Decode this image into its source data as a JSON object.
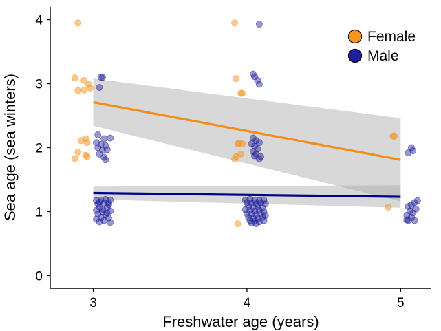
{
  "chart_data": {
    "type": "scatter",
    "title": "",
    "xlabel": "Freshwater age (years)",
    "ylabel": "Sea age (sea winters)",
    "xlim": [
      2.72,
      5.2
    ],
    "ylim": [
      -0.2,
      4.2
    ],
    "x_ticks": [
      3,
      4,
      5
    ],
    "y_ticks": [
      0,
      1,
      2,
      3,
      4
    ],
    "grid": false,
    "legend": {
      "position": "top-right"
    },
    "series": [
      {
        "name": "Female",
        "color": "#f5941f",
        "line_color": "#f28c1a",
        "points": [
          [
            2.9,
            3.95
          ],
          [
            2.88,
            3.09
          ],
          [
            2.94,
            3.05
          ],
          [
            2.9,
            2.89
          ],
          [
            2.97,
            2.99
          ],
          [
            2.98,
            2.93
          ],
          [
            2.94,
            2.9
          ],
          [
            2.92,
            2.11
          ],
          [
            2.95,
            2.14
          ],
          [
            2.96,
            2.08
          ],
          [
            2.9,
            1.93
          ],
          [
            2.88,
            1.83
          ],
          [
            2.96,
            1.86
          ],
          [
            2.95,
            1.88
          ],
          [
            3.92,
            3.95
          ],
          [
            3.93,
            3.08
          ],
          [
            3.96,
            2.85
          ],
          [
            3.97,
            2.85
          ],
          [
            3.95,
            2.07
          ],
          [
            3.97,
            2.06
          ],
          [
            3.94,
            2.06
          ],
          [
            3.96,
            1.9
          ],
          [
            3.93,
            1.86
          ],
          [
            3.92,
            1.82
          ],
          [
            3.94,
            0.81
          ],
          [
            4.95,
            2.18
          ],
          [
            4.96,
            2.18
          ],
          [
            4.92,
            1.07
          ]
        ],
        "fit": {
          "x": [
            3,
            5
          ],
          "y": [
            2.71,
            1.81
          ],
          "ci_lower": [
            2.34,
            1.16
          ],
          "ci_upper": [
            3.08,
            2.46
          ]
        }
      },
      {
        "name": "Male",
        "color": "#1f1f99",
        "line_color": "#00008b",
        "points": [
          [
            3.05,
            3.1
          ],
          [
            3.06,
            3.1
          ],
          [
            3.04,
            2.94
          ],
          [
            3.03,
            2.2
          ],
          [
            3.07,
            2.14
          ],
          [
            3.11,
            2.15
          ],
          [
            3.02,
            2.08
          ],
          [
            3.05,
            2.05
          ],
          [
            3.08,
            2.03
          ],
          [
            3.03,
            2.0
          ],
          [
            3.06,
            1.96
          ],
          [
            3.09,
            1.97
          ],
          [
            3.04,
            1.9
          ],
          [
            3.07,
            1.85
          ],
          [
            3.08,
            1.81
          ],
          [
            3.02,
            1.17
          ],
          [
            3.05,
            1.18
          ],
          [
            3.08,
            1.19
          ],
          [
            3.11,
            1.18
          ],
          [
            3.03,
            1.12
          ],
          [
            3.07,
            1.13
          ],
          [
            3.1,
            1.11
          ],
          [
            3.04,
            1.07
          ],
          [
            3.09,
            1.06
          ],
          [
            3.02,
            1.02
          ],
          [
            3.06,
            1.0
          ],
          [
            3.11,
            1.01
          ],
          [
            3.03,
            0.96
          ],
          [
            3.08,
            0.95
          ],
          [
            3.05,
            0.91
          ],
          [
            3.1,
            0.9
          ],
          [
            3.02,
            0.88
          ],
          [
            3.07,
            0.86
          ],
          [
            3.04,
            0.84
          ],
          [
            3.11,
            0.83
          ],
          [
            3.06,
            1.04
          ],
          [
            3.09,
            0.98
          ],
          [
            3.04,
            1.15
          ],
          [
            3.1,
            1.14
          ],
          [
            4.08,
            3.93
          ],
          [
            4.04,
            3.15
          ],
          [
            4.05,
            3.11
          ],
          [
            4.07,
            3.05
          ],
          [
            4.08,
            2.99
          ],
          [
            4.04,
            2.15
          ],
          [
            4.06,
            2.11
          ],
          [
            4.03,
            2.06
          ],
          [
            4.08,
            2.08
          ],
          [
            4.05,
            2.02
          ],
          [
            4.07,
            1.98
          ],
          [
            4.04,
            1.94
          ],
          [
            4.06,
            1.9
          ],
          [
            4.09,
            1.86
          ],
          [
            4.05,
            1.87
          ],
          [
            4.08,
            1.82
          ],
          [
            3.99,
            1.18
          ],
          [
            4.02,
            1.19
          ],
          [
            4.05,
            1.18
          ],
          [
            4.08,
            1.17
          ],
          [
            4.11,
            1.18
          ],
          [
            4.0,
            1.14
          ],
          [
            4.03,
            1.13
          ],
          [
            4.06,
            1.12
          ],
          [
            4.09,
            1.14
          ],
          [
            4.12,
            1.12
          ],
          [
            4.01,
            1.08
          ],
          [
            4.04,
            1.07
          ],
          [
            4.07,
            1.08
          ],
          [
            4.1,
            1.06
          ],
          [
            3.99,
            1.03
          ],
          [
            4.02,
            1.02
          ],
          [
            4.05,
            1.01
          ],
          [
            4.08,
            1.02
          ],
          [
            4.11,
            1.0
          ],
          [
            4.0,
            0.97
          ],
          [
            4.03,
            0.96
          ],
          [
            4.06,
            0.95
          ],
          [
            4.09,
            0.97
          ],
          [
            4.12,
            0.94
          ],
          [
            4.01,
            0.91
          ],
          [
            4.04,
            0.9
          ],
          [
            4.07,
            0.89
          ],
          [
            4.1,
            0.91
          ],
          [
            4.02,
            0.86
          ],
          [
            4.05,
            0.85
          ],
          [
            4.08,
            0.84
          ],
          [
            4.11,
            0.86
          ],
          [
            4.03,
            0.82
          ],
          [
            4.06,
            0.81
          ],
          [
            5.07,
            2.0
          ],
          [
            5.08,
            1.95
          ],
          [
            5.05,
            1.92
          ],
          [
            5.11,
            1.17
          ],
          [
            5.09,
            1.14
          ],
          [
            5.07,
            1.1
          ],
          [
            5.05,
            1.08
          ],
          [
            5.1,
            1.04
          ],
          [
            5.06,
            1.01
          ],
          [
            5.08,
            0.98
          ],
          [
            5.04,
            0.94
          ],
          [
            5.07,
            0.91
          ],
          [
            5.04,
            0.87
          ],
          [
            5.05,
            0.86
          ],
          [
            5.09,
            0.86
          ]
        ],
        "fit": {
          "x": [
            3,
            5
          ],
          "y": [
            1.29,
            1.23
          ],
          "ci_lower": [
            1.19,
            1.06
          ],
          "ci_upper": [
            1.39,
            1.41
          ]
        }
      }
    ]
  }
}
